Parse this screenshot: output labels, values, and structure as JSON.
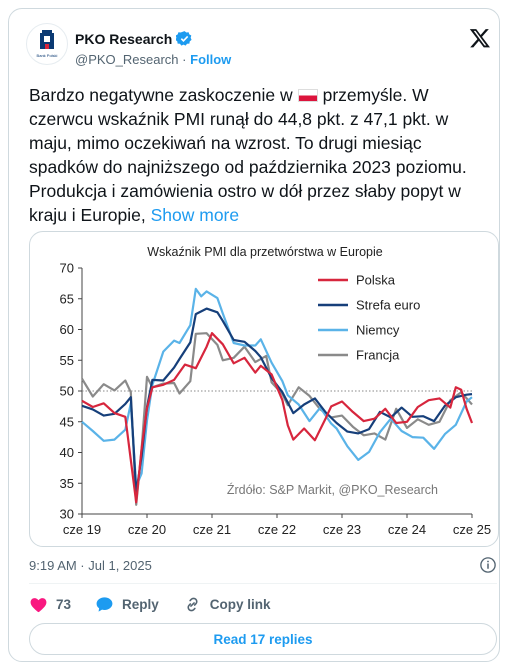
{
  "author": {
    "name": "PKO Research",
    "handle": "@PKO_Research",
    "separator": "·",
    "follow_label": "Follow",
    "verified": true,
    "logo_caption": "Bank Polski"
  },
  "tweet": {
    "text_before_flag": "Bardzo negatywne zaskoczenie w",
    "flag": "flag-poland",
    "text_after_flag": "przemyśle. W czerwcu wskaźnik PMI runął do 44,8 pkt. z 47,1 pkt. w maju, mimo  oczekiwań na wzrost. To drugi miesiąc spadków do najniższego od października 2023 poziomu. Produkcja i zamówienia  ostro w dół przez słaby popyt w kraju i Europie,",
    "show_more": "Show more"
  },
  "timestamp": "9:19 AM · Jul 1, 2025",
  "actions": {
    "like_count": "73",
    "reply_label": "Reply",
    "copy_link_label": "Copy link"
  },
  "read_replies_label": "Read 17 replies",
  "colors": {
    "accent": "#1d9bf0",
    "like": "#f91880",
    "polska": "#d7263d",
    "strefa_euro": "#163f7a",
    "niemcy": "#5ab3e8",
    "francja": "#8a8a8a"
  },
  "chart_data": {
    "type": "line",
    "title": "Wskaźnik PMI dla przetwórstwa w Europie",
    "x_tick_labels": [
      "cze 19",
      "cze 20",
      "cze 21",
      "cze 22",
      "cze 23",
      "cze 24",
      "cze 25"
    ],
    "x_range": [
      "2019-06",
      "2025-06"
    ],
    "ylim": [
      30,
      70
    ],
    "yticks": [
      30,
      35,
      40,
      45,
      50,
      55,
      60,
      65,
      70
    ],
    "reference_line": 50,
    "grid": false,
    "legend_position": "top-right",
    "annotation": "Źrdóło: S&P Markit, @PKO_Research",
    "series": [
      {
        "name": "Polska",
        "color": "#d7263d",
        "values": [
          [
            0,
            48.4
          ],
          [
            2,
            47.4
          ],
          [
            4,
            48.0
          ],
          [
            6,
            46.4
          ],
          [
            8,
            45.8
          ],
          [
            10,
            31.9
          ],
          [
            11,
            40.6
          ],
          [
            12,
            47.2
          ],
          [
            13,
            50.6
          ],
          [
            15,
            51.0
          ],
          [
            17,
            51.8
          ],
          [
            19,
            54.3
          ],
          [
            21,
            53.7
          ],
          [
            23,
            57.2
          ],
          [
            24,
            59.4
          ],
          [
            26,
            57.6
          ],
          [
            28,
            54.5
          ],
          [
            30,
            55.4
          ],
          [
            32,
            53.0
          ],
          [
            33,
            54.1
          ],
          [
            35,
            52.7
          ],
          [
            37,
            48.5
          ],
          [
            38,
            44.4
          ],
          [
            39,
            42.1
          ],
          [
            41,
            43.9
          ],
          [
            43,
            42.0
          ],
          [
            45,
            45.6
          ],
          [
            46,
            47.5
          ],
          [
            48,
            48.3
          ],
          [
            50,
            46.6
          ],
          [
            52,
            45.1
          ],
          [
            54,
            45.5
          ],
          [
            56,
            47.1
          ],
          [
            58,
            44.8
          ],
          [
            60,
            45.0
          ],
          [
            62,
            47.4
          ],
          [
            64,
            48.5
          ],
          [
            66,
            48.8
          ],
          [
            68,
            47.3
          ],
          [
            69,
            50.6
          ],
          [
            70,
            50.2
          ],
          [
            71,
            47.1
          ],
          [
            72,
            44.8
          ]
        ]
      },
      {
        "name": "Strefa euro",
        "color": "#163f7a",
        "values": [
          [
            0,
            47.6
          ],
          [
            2,
            47.0
          ],
          [
            4,
            46.0
          ],
          [
            6,
            46.3
          ],
          [
            8,
            47.9
          ],
          [
            9,
            49.0
          ],
          [
            10,
            33.4
          ],
          [
            11,
            39.4
          ],
          [
            12,
            47.4
          ],
          [
            13,
            51.8
          ],
          [
            15,
            51.7
          ],
          [
            17,
            53.8
          ],
          [
            18,
            55.2
          ],
          [
            20,
            57.9
          ],
          [
            21,
            62.5
          ],
          [
            23,
            63.4
          ],
          [
            25,
            62.8
          ],
          [
            26,
            61.4
          ],
          [
            28,
            58.3
          ],
          [
            30,
            58.0
          ],
          [
            32,
            56.5
          ],
          [
            33,
            55.5
          ],
          [
            35,
            52.1
          ],
          [
            37,
            49.8
          ],
          [
            39,
            46.4
          ],
          [
            41,
            47.8
          ],
          [
            43,
            48.8
          ],
          [
            45,
            46.5
          ],
          [
            47,
            44.8
          ],
          [
            49,
            43.4
          ],
          [
            51,
            43.1
          ],
          [
            53,
            43.8
          ],
          [
            55,
            46.6
          ],
          [
            57,
            45.7
          ],
          [
            59,
            47.3
          ],
          [
            61,
            45.8
          ],
          [
            63,
            45.9
          ],
          [
            65,
            45.1
          ],
          [
            67,
            47.6
          ],
          [
            69,
            49.0
          ],
          [
            71,
            49.4
          ],
          [
            72,
            49.5
          ]
        ]
      },
      {
        "name": "Niemcy",
        "color": "#5ab3e8",
        "values": [
          [
            0,
            45.0
          ],
          [
            2,
            43.5
          ],
          [
            4,
            41.9
          ],
          [
            6,
            42.1
          ],
          [
            8,
            43.7
          ],
          [
            9,
            48.0
          ],
          [
            10,
            34.5
          ],
          [
            11,
            36.6
          ],
          [
            12,
            45.2
          ],
          [
            13,
            51.0
          ],
          [
            15,
            56.4
          ],
          [
            17,
            58.2
          ],
          [
            18,
            57.8
          ],
          [
            20,
            60.7
          ],
          [
            21,
            66.6
          ],
          [
            22,
            65.4
          ],
          [
            23,
            66.2
          ],
          [
            25,
            65.1
          ],
          [
            26,
            62.6
          ],
          [
            28,
            57.8
          ],
          [
            30,
            57.4
          ],
          [
            32,
            57.4
          ],
          [
            33,
            58.4
          ],
          [
            35,
            54.6
          ],
          [
            37,
            51.6
          ],
          [
            38,
            49.3
          ],
          [
            40,
            47.8
          ],
          [
            42,
            45.1
          ],
          [
            44,
            47.3
          ],
          [
            46,
            44.7
          ],
          [
            47,
            43.9
          ],
          [
            49,
            41.0
          ],
          [
            51,
            38.8
          ],
          [
            53,
            40.1
          ],
          [
            55,
            43.3
          ],
          [
            57,
            45.5
          ],
          [
            59,
            43.5
          ],
          [
            61,
            42.5
          ],
          [
            63,
            42.4
          ],
          [
            65,
            40.6
          ],
          [
            67,
            43.0
          ],
          [
            69,
            44.5
          ],
          [
            71,
            48.3
          ],
          [
            72,
            49.0
          ]
        ]
      },
      {
        "name": "Francja",
        "color": "#8a8a8a",
        "values": [
          [
            0,
            52.0
          ],
          [
            2,
            49.1
          ],
          [
            4,
            51.1
          ],
          [
            6,
            50.1
          ],
          [
            8,
            51.7
          ],
          [
            9,
            49.8
          ],
          [
            10,
            31.5
          ],
          [
            11,
            40.6
          ],
          [
            12,
            52.3
          ],
          [
            13,
            50.6
          ],
          [
            15,
            51.2
          ],
          [
            17,
            51.3
          ],
          [
            18,
            49.6
          ],
          [
            20,
            51.6
          ],
          [
            21,
            59.3
          ],
          [
            23,
            59.4
          ],
          [
            25,
            57.5
          ],
          [
            26,
            55.0
          ],
          [
            28,
            55.4
          ],
          [
            30,
            57.2
          ],
          [
            32,
            54.7
          ],
          [
            34,
            55.7
          ],
          [
            35,
            51.4
          ],
          [
            37,
            49.5
          ],
          [
            38,
            47.7
          ],
          [
            40,
            50.6
          ],
          [
            42,
            49.2
          ],
          [
            44,
            47.0
          ],
          [
            46,
            45.7
          ],
          [
            48,
            46.0
          ],
          [
            50,
            44.2
          ],
          [
            52,
            42.8
          ],
          [
            54,
            43.1
          ],
          [
            56,
            42.1
          ],
          [
            58,
            47.1
          ],
          [
            60,
            44.0
          ],
          [
            62,
            45.4
          ],
          [
            64,
            44.5
          ],
          [
            66,
            45.0
          ],
          [
            68,
            48.5
          ],
          [
            70,
            49.8
          ],
          [
            72,
            47.8
          ]
        ]
      }
    ]
  }
}
